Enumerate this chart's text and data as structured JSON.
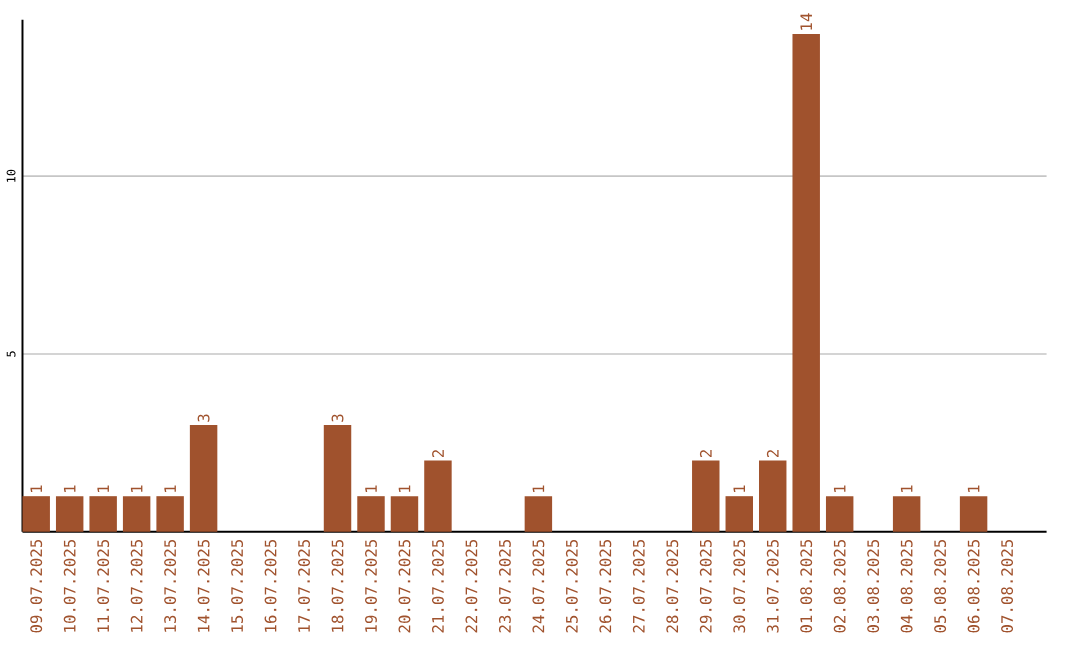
{
  "chart_data": {
    "type": "bar",
    "categories": [
      "09.07.2025",
      "10.07.2025",
      "11.07.2025",
      "12.07.2025",
      "13.07.2025",
      "14.07.2025",
      "15.07.2025",
      "16.07.2025",
      "17.07.2025",
      "18.07.2025",
      "19.07.2025",
      "20.07.2025",
      "21.07.2025",
      "22.07.2025",
      "23.07.2025",
      "24.07.2025",
      "25.07.2025",
      "26.07.2025",
      "27.07.2025",
      "28.07.2025",
      "29.07.2025",
      "30.07.2025",
      "31.07.2025",
      "01.08.2025",
      "02.08.2025",
      "03.08.2025",
      "04.08.2025",
      "05.08.2025",
      "06.08.2025",
      "07.08.2025"
    ],
    "values": [
      1,
      1,
      1,
      1,
      1,
      3,
      0,
      0,
      0,
      3,
      1,
      1,
      2,
      0,
      0,
      1,
      0,
      0,
      0,
      0,
      2,
      1,
      2,
      14,
      1,
      0,
      1,
      0,
      1,
      0
    ],
    "value_labels": [
      "1",
      "1",
      "1",
      "1",
      "1",
      "3",
      null,
      null,
      null,
      "3",
      "1",
      "1",
      "2",
      null,
      null,
      "1",
      null,
      null,
      null,
      null,
      "2",
      "1",
      "2",
      "14",
      "1",
      null,
      "1",
      null,
      "1",
      null
    ],
    "color": "#a0522d",
    "ylim": [
      0,
      14.4
    ],
    "yticks": [
      5,
      10
    ],
    "grid": "y"
  }
}
